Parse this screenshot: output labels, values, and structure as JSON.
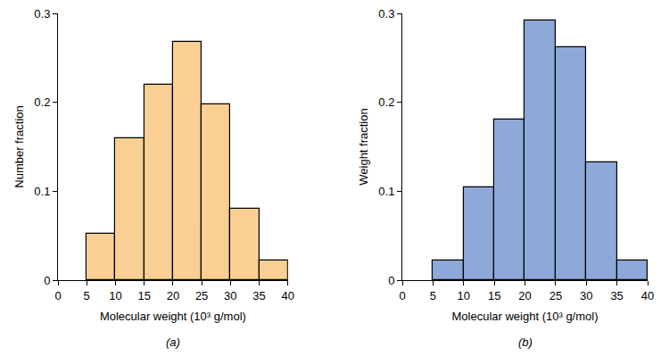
{
  "chart_data": [
    {
      "type": "histogram",
      "annotations": [
        "(a)"
      ],
      "x_label": "Molecular weight (10³ g/mol)",
      "y_label": "Number fraction",
      "bins": [
        5,
        10,
        15,
        20,
        25,
        30,
        35,
        40
      ],
      "values": [
        0.052,
        0.16,
        0.22,
        0.268,
        0.198,
        0.08,
        0.022
      ],
      "color": "#f9cf93",
      "xlim": [
        0,
        40
      ],
      "xticks": [
        0,
        5,
        10,
        15,
        20,
        25,
        30,
        35,
        40
      ],
      "ylim": [
        0,
        0.3
      ],
      "yticks": [
        0,
        0.1,
        0.2,
        0.3
      ],
      "grid": false
    },
    {
      "type": "histogram",
      "annotations": [
        "(b)"
      ],
      "x_label": "Molecular weight (10³ g/mol)",
      "y_label": "Weight fraction",
      "bins": [
        5,
        10,
        15,
        20,
        25,
        30,
        35,
        40
      ],
      "values": [
        0.022,
        0.104,
        0.181,
        0.292,
        0.262,
        0.132,
        0.022
      ],
      "color": "#8fa8da",
      "xlim": [
        0,
        40
      ],
      "xticks": [
        0,
        5,
        10,
        15,
        20,
        25,
        30,
        35,
        40
      ],
      "ylim": [
        0,
        0.3
      ],
      "yticks": [
        0,
        0.1,
        0.2,
        0.3
      ],
      "grid": false
    }
  ]
}
